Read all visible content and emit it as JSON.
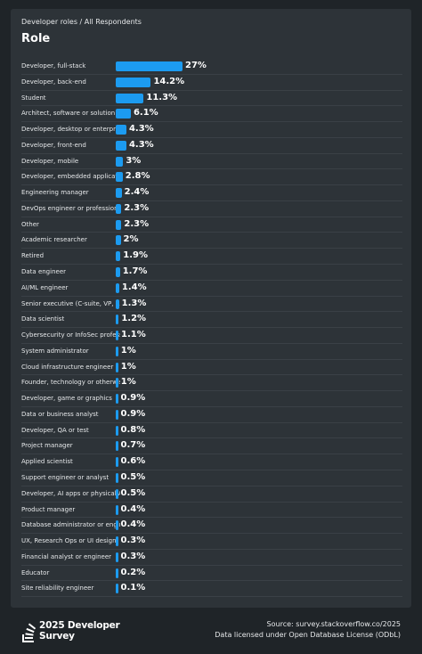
{
  "breadcrumb": "Developer roles / All Respondents",
  "title": "Role",
  "colors": {
    "bar": "#1c9bf0",
    "background": "#2d3338"
  },
  "chart_data": {
    "type": "bar",
    "orientation": "horizontal",
    "title": "Role",
    "categories": [
      "Developer, full-stack",
      "Developer, back-end",
      "Student",
      "Architect, software or solution",
      "Developer, desktop or enterprise",
      "Developer, front-end",
      "Developer, mobile",
      "Developer, embedded applications",
      "Engineering manager",
      "DevOps engineer or professional",
      "Other",
      "Academic researcher",
      "Retired",
      "Data engineer",
      "AI/ML engineer",
      "Senior executive (C-suite, VP, ...",
      "Data scientist",
      "Cybersecurity or InfoSec professional",
      "System administrator",
      "Cloud infrastructure engineer",
      "Founder, technology or otherwise",
      "Developer, game or graphics",
      "Data or business analyst",
      "Developer, QA or test",
      "Project manager",
      "Applied scientist",
      "Support engineer or analyst",
      "Developer, AI apps or physical AI",
      "Product manager",
      "Database administrator or engineer",
      "UX, Research Ops or UI design",
      "Financial analyst or engineer",
      "Educator",
      "Site reliability engineer"
    ],
    "values": [
      27,
      14.2,
      11.3,
      6.1,
      4.3,
      4.3,
      3,
      2.8,
      2.4,
      2.3,
      2.3,
      2,
      1.9,
      1.7,
      1.4,
      1.3,
      1.2,
      1.1,
      1,
      1,
      1,
      0.9,
      0.9,
      0.8,
      0.7,
      0.6,
      0.5,
      0.5,
      0.4,
      0.4,
      0.3,
      0.3,
      0.2,
      0.1
    ],
    "value_labels": [
      "27%",
      "14.2%",
      "11.3%",
      "6.1%",
      "4.3%",
      "4.3%",
      "3%",
      "2.8%",
      "2.4%",
      "2.3%",
      "2.3%",
      "2%",
      "1.9%",
      "1.7%",
      "1.4%",
      "1.3%",
      "1.2%",
      "1.1%",
      "1%",
      "1%",
      "1%",
      "0.9%",
      "0.9%",
      "0.8%",
      "0.7%",
      "0.6%",
      "0.5%",
      "0.5%",
      "0.4%",
      "0.4%",
      "0.3%",
      "0.3%",
      "0.2%",
      "0.1%"
    ],
    "unit": "%"
  },
  "footer": {
    "logo_line1": "2025",
    "logo_line2_a": "Developer",
    "logo_line2_b": "Survey",
    "source": "Source: survey.stackoverflow.co/2025",
    "license": "Data licensed under Open Database License (ODbL)"
  }
}
